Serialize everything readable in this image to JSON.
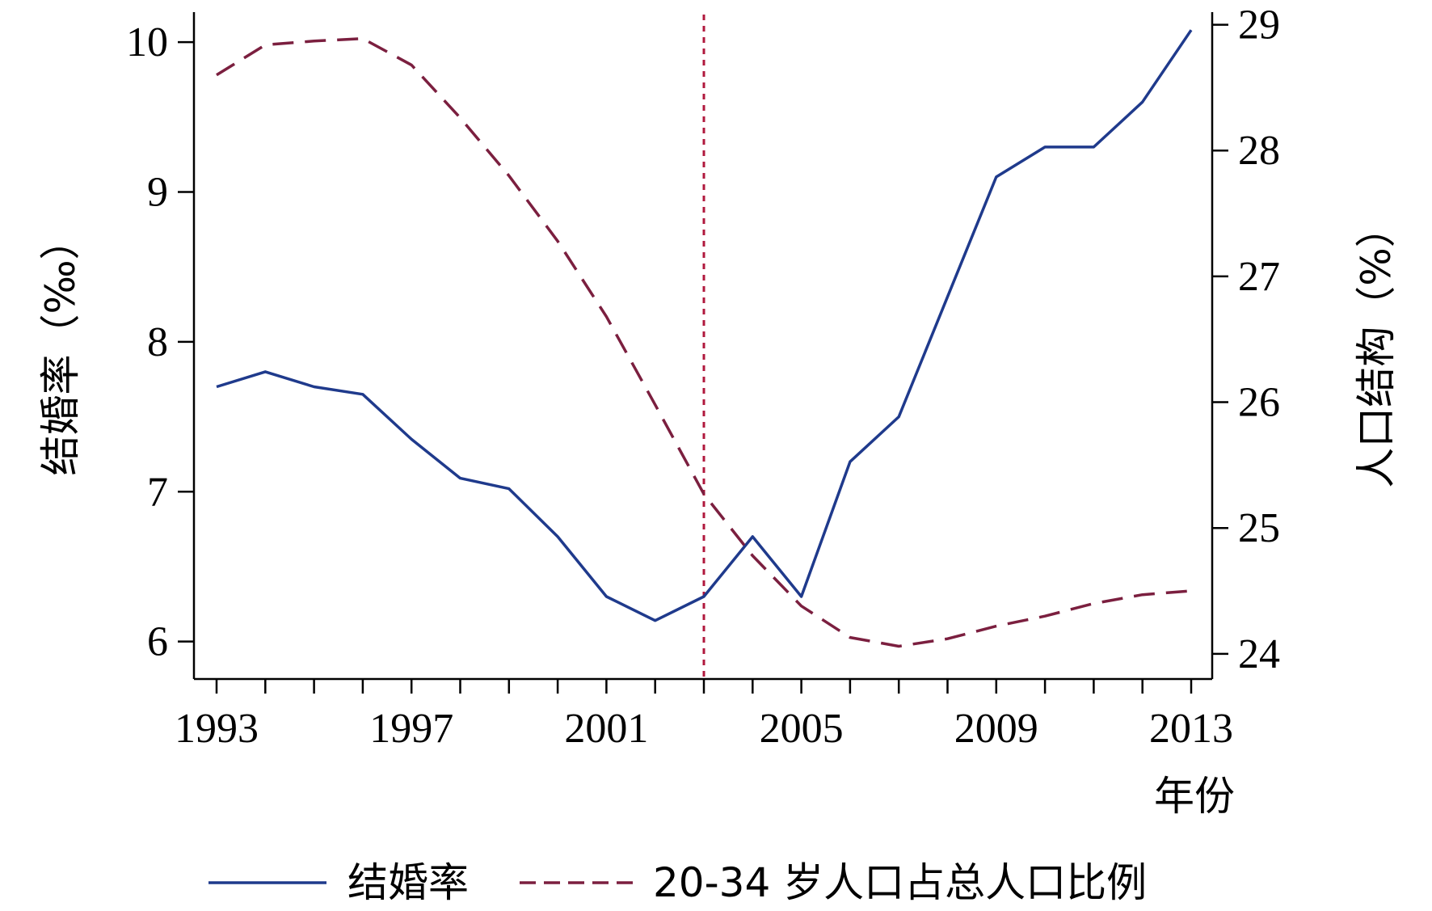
{
  "chart_data": {
    "type": "line",
    "x": [
      1993,
      1994,
      1995,
      1996,
      1997,
      1998,
      1999,
      2000,
      2001,
      2002,
      2003,
      2004,
      2005,
      2006,
      2007,
      2008,
      2009,
      2010,
      2011,
      2012,
      2013
    ],
    "series": [
      {
        "name": "结婚率",
        "axis": "left",
        "style": "solid",
        "color": "#1f3a8c",
        "values": [
          7.7,
          7.8,
          7.7,
          7.65,
          7.35,
          7.09,
          7.02,
          6.7,
          6.3,
          6.14,
          6.3,
          6.7,
          6.3,
          7.2,
          7.5,
          8.3,
          9.1,
          9.3,
          9.3,
          9.6,
          10.08
        ]
      },
      {
        "name": "20-34 岁人口占总人口比例",
        "axis": "right",
        "style": "dashed",
        "color": "#7b1f3f",
        "values": [
          28.6,
          28.84,
          28.87,
          28.89,
          28.68,
          28.26,
          27.8,
          27.28,
          26.68,
          25.98,
          25.27,
          24.78,
          24.38,
          24.13,
          24.06,
          24.12,
          24.22,
          24.3,
          24.4,
          24.47,
          24.5
        ]
      }
    ],
    "xlabel": "年份",
    "ylabel_left": "结婚率（‰）",
    "ylabel_right": "人口结构（%）",
    "x_ticks": [
      "1993",
      "1997",
      "2001",
      "2005",
      "2009",
      "2013"
    ],
    "ylim_left": [
      5.75,
      10.2
    ],
    "y_ticks_left": [
      "6",
      "7",
      "8",
      "9",
      "10"
    ],
    "ylim_right": [
      23.8,
      29.1
    ],
    "y_ticks_right": [
      "24",
      "25",
      "26",
      "27",
      "28",
      "29"
    ],
    "reference_line_x": 2003,
    "reference_line_color": "#b0183d",
    "legend_position": "bottom",
    "grid": false
  }
}
